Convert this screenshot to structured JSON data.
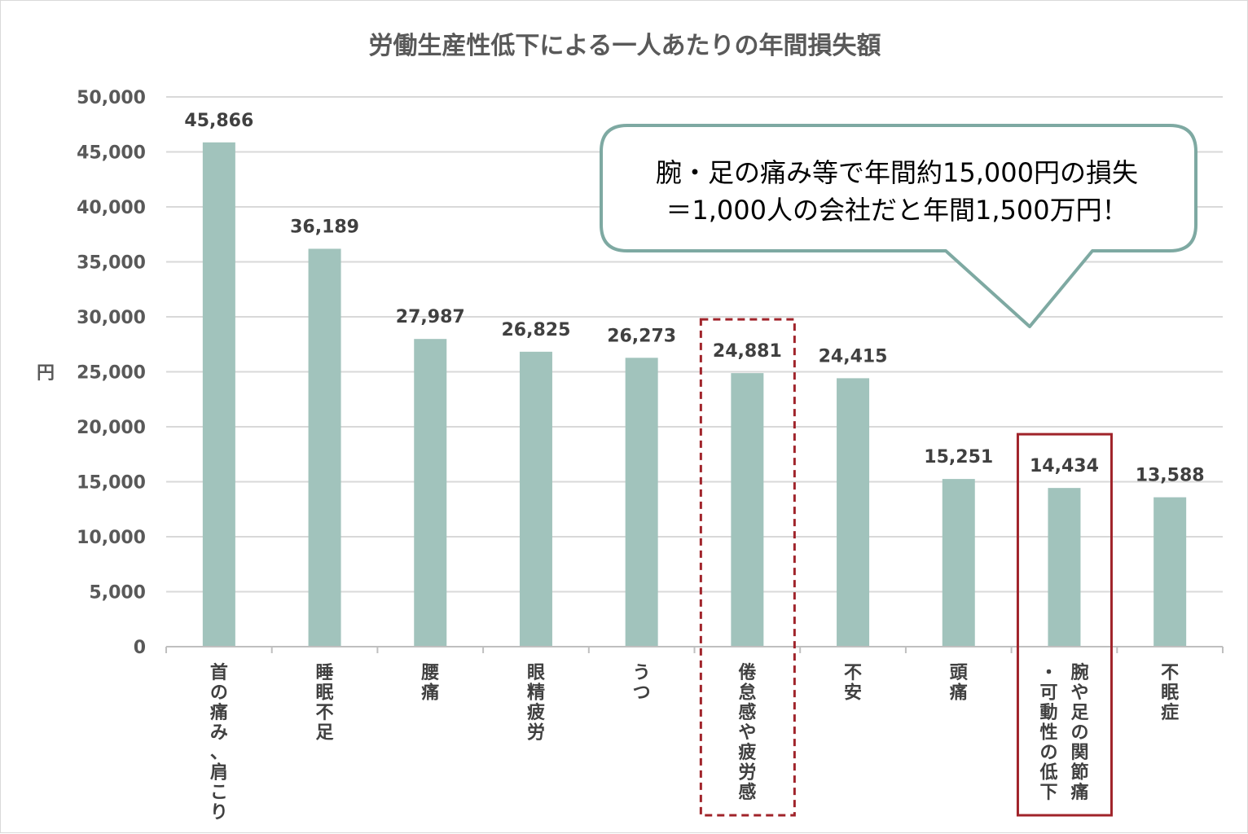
{
  "chart_data": {
    "type": "bar",
    "title": "労働生産性低下による一人あたりの年間損失額",
    "ylabel": "円",
    "xlabel": "",
    "ylim": [
      0,
      50000
    ],
    "yticks": [
      0,
      5000,
      10000,
      15000,
      20000,
      25000,
      30000,
      35000,
      40000,
      45000,
      50000
    ],
    "ytick_labels": [
      "0",
      "5,000",
      "10,000",
      "15,000",
      "20,000",
      "25,000",
      "30,000",
      "35,000",
      "40,000",
      "45,000",
      "50,000"
    ],
    "grid": true,
    "bar_color": "#a1c3bc",
    "categories": [
      "首の痛み、肩こり",
      "睡眠不足",
      "腰痛",
      "眼精疲労",
      "うつ",
      "倦怠感や疲労感",
      "不安",
      "頭痛",
      "腕や足の関節痛・可動性の低下",
      "不眠症"
    ],
    "category_lines": [
      [
        [
          "首の痛み、肩こり"
        ]
      ],
      [
        [
          "睡眠不足"
        ]
      ],
      [
        [
          "腰痛"
        ]
      ],
      [
        [
          "眼精疲労"
        ]
      ],
      [
        [
          "うつ"
        ]
      ],
      [
        [
          "倦怠感や疲労感"
        ]
      ],
      [
        [
          "不安"
        ]
      ],
      [
        [
          "頭痛"
        ]
      ],
      [
        [
          "腕や足の関節痛"
        ],
        [
          "・可動性の低下"
        ]
      ],
      [
        [
          "不眠症"
        ]
      ]
    ],
    "values": [
      45866,
      36189,
      27987,
      26825,
      26273,
      24881,
      24415,
      15251,
      14434,
      13588
    ],
    "value_labels": [
      "45,866",
      "36,189",
      "27,987",
      "26,825",
      "26,273",
      "24,881",
      "24,415",
      "15,251",
      "14,434",
      "13,588"
    ],
    "highlights": [
      {
        "category_index": 5,
        "style": "dashed",
        "color": "#a0232a"
      },
      {
        "category_index": 8,
        "style": "solid",
        "color": "#a0232a"
      }
    ],
    "annotation": {
      "lines": [
        "腕・足の痛み等で年間約15,000円の損失",
        "＝1,000人の会社だと年間1,500万円！"
      ],
      "border_color": "#7ea9a2"
    }
  }
}
